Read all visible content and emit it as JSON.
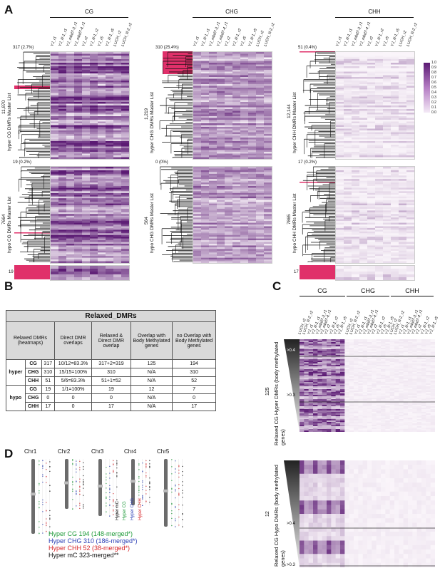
{
  "panels": {
    "A": "A",
    "B": "B",
    "C": "C",
    "D": "D"
  },
  "panelA": {
    "contexts": [
      "CG",
      "CHG",
      "CHH"
    ],
    "columns": [
      "YJ_r1",
      "YJ_lil-1_r1",
      "YJ_mbd7-3_r1",
      "YJ_mbd7-4_r1",
      "YJ_r2",
      "YJ_lil-1_r2",
      "YJ_r5",
      "YJ_lil-1_r5",
      "LUCH_r2",
      "LUCH_lil-2_r2"
    ],
    "hyper": [
      {
        "label": "hyper CG DMRs Master List",
        "count": "11,870",
        "cluster": "317 (2.7%)"
      },
      {
        "label": "hyper CHG DMRs Master List",
        "count": "1,219",
        "cluster": "310 (25.4%)"
      },
      {
        "label": "hyper CHH DMRs Master List",
        "count": "12,144",
        "cluster": "51 (0.4%)"
      }
    ],
    "hypo": [
      {
        "label": "hypo CG DMRs Master List",
        "count": "7664",
        "cluster": "19 (0.2%)"
      },
      {
        "label": "hypo CHG DMRs Master List",
        "count": "564",
        "cluster": "0 (0%)"
      },
      {
        "label": "hypo CHH DMRs Master List",
        "count": "7865",
        "cluster": "17 (0.2%)"
      }
    ],
    "inset_labels": [
      "19",
      "17"
    ],
    "scale": [
      "1.0",
      "0.9",
      "0.8",
      "0.7",
      "0.6",
      "0.5",
      "0.4",
      "0.3",
      "0.2",
      "0.1",
      "0.0"
    ],
    "colors": {
      "high": "#5b1a73",
      "mid": "#b57dc4",
      "low": "#f4eaf6",
      "highlight": "#e0306a"
    }
  },
  "panelB": {
    "title": "Relaxed_DMRs",
    "headers": [
      "Relaxed DMRs (heatmaps)",
      "Direct DMR overlaps",
      "Relaxed & Direct DMR overlap",
      "Overlap with Body Methylated genes",
      "no Overlap with Body Methylated genes"
    ],
    "hyper_label": "hyper",
    "hypo_label": "hypo",
    "hyper_rows": [
      [
        "CG",
        "317",
        "10/12=83.3%",
        "317+2=319",
        "125",
        "194"
      ],
      [
        "CHG",
        "310",
        "15/15=100%",
        "310",
        "N/A",
        "310"
      ],
      [
        "CHH",
        "51",
        "5/6=83.3%",
        "51+1=52",
        "N/A",
        "52"
      ]
    ],
    "hypo_rows": [
      [
        "CG",
        "19",
        "1/1=100%",
        "19",
        "12",
        "7"
      ],
      [
        "CHG",
        "0",
        "0",
        "0",
        "N/A",
        "0"
      ],
      [
        "CHH",
        "17",
        "0",
        "17",
        "N/A",
        "17"
      ]
    ]
  },
  "panelC": {
    "contexts": [
      "CG",
      "CHG",
      "CHH"
    ],
    "columns": [
      "LUCH_r2",
      "LUCH_lil-2_r2",
      "YJ_r1",
      "YJ_lil-1_r1",
      "YJ_mbd7-3_r1",
      "YJ_mbd7-4_r1",
      "YJ_r2",
      "YJ_lil-1_r2",
      "YJ_r5",
      "YJ_lil-1_r5"
    ],
    "upper_label": "Relaxed CG Hyper DMRs (body methylated genes)",
    "upper_count": "125",
    "lower_label": "Relaxed CG Hypo DMRs (body methylated genes)",
    "lower_count": "12",
    "thresholds": [
      ">0.4",
      ">0.3",
      ">0.4",
      ">0.3"
    ]
  },
  "panelD": {
    "chromosomes": [
      "Chr1",
      "Chr2",
      "Chr3",
      "Chr4",
      "Chr5"
    ],
    "track_labels": [
      "Hyper mC",
      "Hyper CG",
      "Hyper CHG",
      "Hyper CHH"
    ],
    "legend": [
      {
        "text": "Hyper CG 194 (148-merged*)",
        "color": "#1f9b3a"
      },
      {
        "text": "Hyper CHG 310 (186-merged*)",
        "color": "#2b3fb5"
      },
      {
        "text": "Hyper CHH 52 (38-merged*)",
        "color": "#d7262a"
      },
      {
        "text": "Hyper mC 323-merged**",
        "color": "#111111"
      }
    ]
  }
}
